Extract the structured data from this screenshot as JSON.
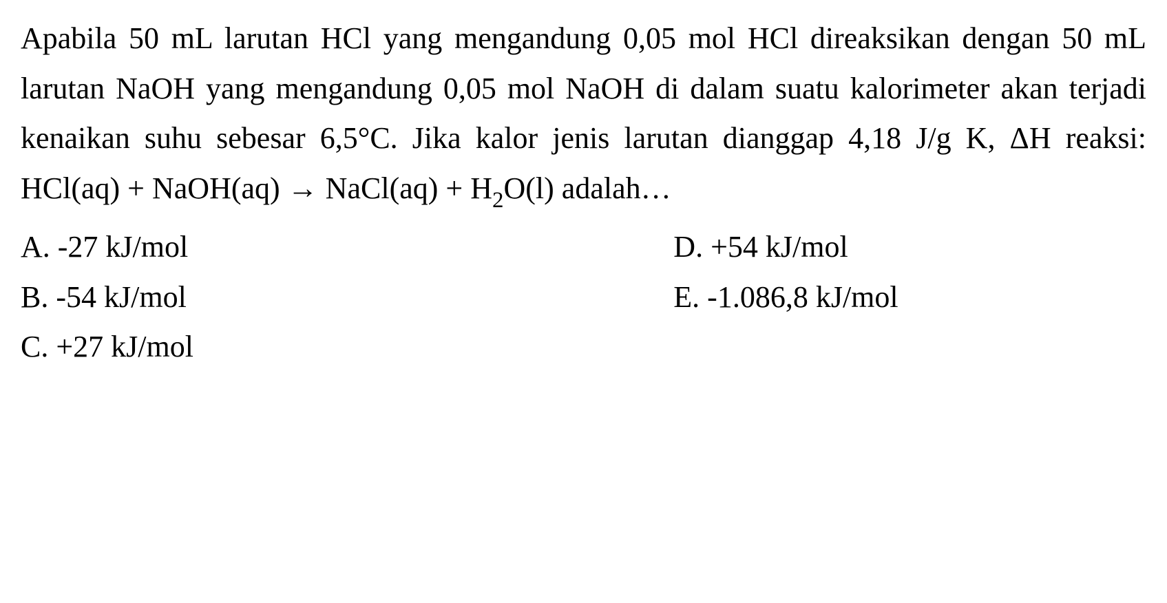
{
  "question": {
    "p1": "Apabila 50 mL larutan HCl yang mengandung 0,05 mol HCl direaksikan dengan 50 mL larutan NaOH yang mengandung 0,05 mol NaOH di dalam suatu kalorimeter akan terjadi kenaikan suhu sebesar 6,5°C. Jika kalor jenis larutan dianggap 4,18 J/g K, ΔH reaksi:",
    "reaction_prefix": "HCl(aq) + NaOH(aq) → NaCl(aq) + H",
    "reaction_sub": "2",
    "reaction_suffix": "O(l) adalah…"
  },
  "options": {
    "a": "A. -27 kJ/mol",
    "b": "B. -54 kJ/mol",
    "c": "C. +27 kJ/mol",
    "d": "D. +54 kJ/mol",
    "e": "E. -1.086,8 kJ/mol"
  },
  "style": {
    "font_family": "Times New Roman",
    "font_size_pt": 33,
    "text_color": "#000000",
    "background_color": "#ffffff",
    "line_height": 1.65
  }
}
